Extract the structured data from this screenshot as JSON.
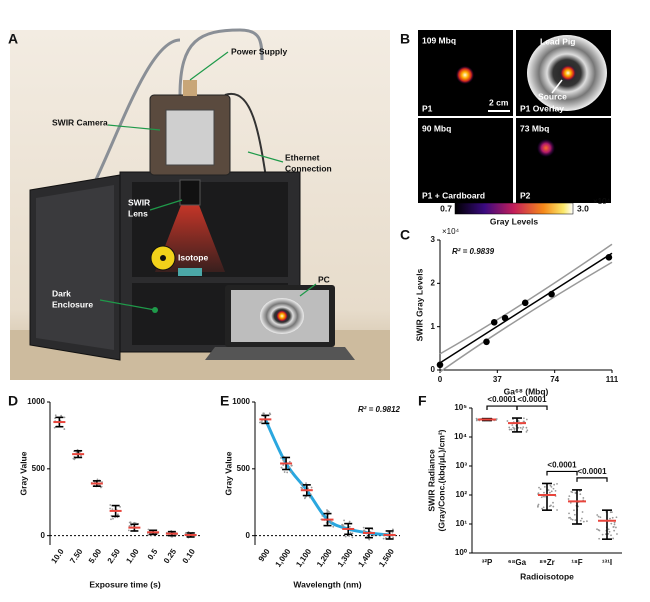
{
  "panel_labels": [
    "A",
    "B",
    "C",
    "D",
    "E",
    "F"
  ],
  "illustration": {
    "labels": [
      [
        "Power Supply"
      ],
      [
        "SWIR Camera"
      ],
      [
        "Ethernet",
        "Connection"
      ],
      [
        "SWIR",
        "Lens"
      ],
      [
        "Isotope"
      ],
      [
        "Dark",
        "Enclosure"
      ],
      [
        "PC"
      ]
    ]
  },
  "images": {
    "tiles": [
      {
        "activity": "109 Mbq",
        "name": "P1"
      },
      {
        "name": "P1 Overlay",
        "annotations": [
          "Lead Pig",
          "Source"
        ],
        "scale_bar": "2 cm"
      },
      {
        "activity": "90 Mbq",
        "name": "P1 + Cardboard"
      },
      {
        "activity": "73 Mbq",
        "name": "P2"
      }
    ],
    "colorbar": {
      "min": "0.7",
      "max": "3.0",
      "label": "Gray Levels",
      "multiplier": "×10⁴"
    }
  },
  "chart_data": [
    {
      "type": "scatter",
      "annotation": "R² = 0.9839",
      "multiplier": "×10⁴",
      "x_label": "Ga⁶⁸ (Mbq)",
      "y_label": "SWIR  Gray Levels",
      "x": [
        0,
        30,
        35,
        42,
        55,
        72,
        109
      ],
      "values": [
        0.12,
        0.65,
        1.1,
        1.2,
        1.55,
        1.75,
        2.6
      ],
      "xlim": [
        0,
        111
      ],
      "ylim": [
        0,
        3
      ],
      "xticks": [
        0,
        37,
        74,
        111
      ],
      "yticks": [
        0,
        1,
        2,
        3
      ],
      "color": "#000000"
    },
    {
      "type": "dot_error",
      "x_label": "Exposure time (s)",
      "y_label": "Gray Value",
      "categories": [
        "10.0",
        "7.50",
        "5.00",
        "2.50",
        "1.00",
        "0.5",
        "0.25",
        "0.10"
      ],
      "values": [
        850,
        610,
        390,
        185,
        60,
        25,
        15,
        5
      ],
      "errors": [
        35,
        25,
        20,
        40,
        25,
        15,
        15,
        15
      ],
      "ylim": [
        -70,
        1000
      ],
      "yticks": [
        0,
        500,
        1000
      ],
      "reference_line": 0,
      "color": "#e8453c"
    },
    {
      "type": "dot_error",
      "x_label": "Wavelength (nm)",
      "y_label": "Gray Value",
      "annotation": "R² = 0.9812",
      "categories": [
        "900",
        "1,000",
        "1,100",
        "1,200",
        "1,300",
        "1,400",
        "1,500"
      ],
      "values": [
        870,
        540,
        340,
        120,
        50,
        20,
        5
      ],
      "errors": [
        30,
        45,
        40,
        45,
        40,
        35,
        30
      ],
      "ylim": [
        -70,
        1000
      ],
      "yticks": [
        0,
        500,
        1000
      ],
      "reference_line": 0,
      "color": "#e8453c",
      "fit_color": "#2aa7df"
    },
    {
      "type": "log_dot_range",
      "log_scale": true,
      "x_label": "Radioisotope",
      "y_label": [
        "SWIR Radiance",
        "(Gray/Conc.(kbq/μL)/cm²)"
      ],
      "categories": [
        "³²P",
        "⁶⁸Ga",
        "⁸⁹Zr",
        "¹⁸F",
        "¹³¹I"
      ],
      "values": [
        40000,
        30000,
        100,
        60,
        13
      ],
      "low": [
        37000,
        15000,
        30,
        10,
        3
      ],
      "high": [
        43000,
        45000,
        250,
        150,
        30
      ],
      "ylim": [
        1,
        100000
      ],
      "yticks": [
        {
          "value": 1,
          "label": "10⁰"
        },
        {
          "value": 10,
          "label": "10¹"
        },
        {
          "value": 100,
          "label": "10²"
        },
        {
          "value": 1000,
          "label": "10³"
        },
        {
          "value": 10000,
          "label": "10⁴"
        },
        {
          "value": 100000,
          "label": "10⁵"
        }
      ],
      "comparison_labels": [
        "<0.0001",
        "<0.0001",
        "<0.0001",
        "<0.0001"
      ],
      "color": "#e8453c"
    }
  ]
}
